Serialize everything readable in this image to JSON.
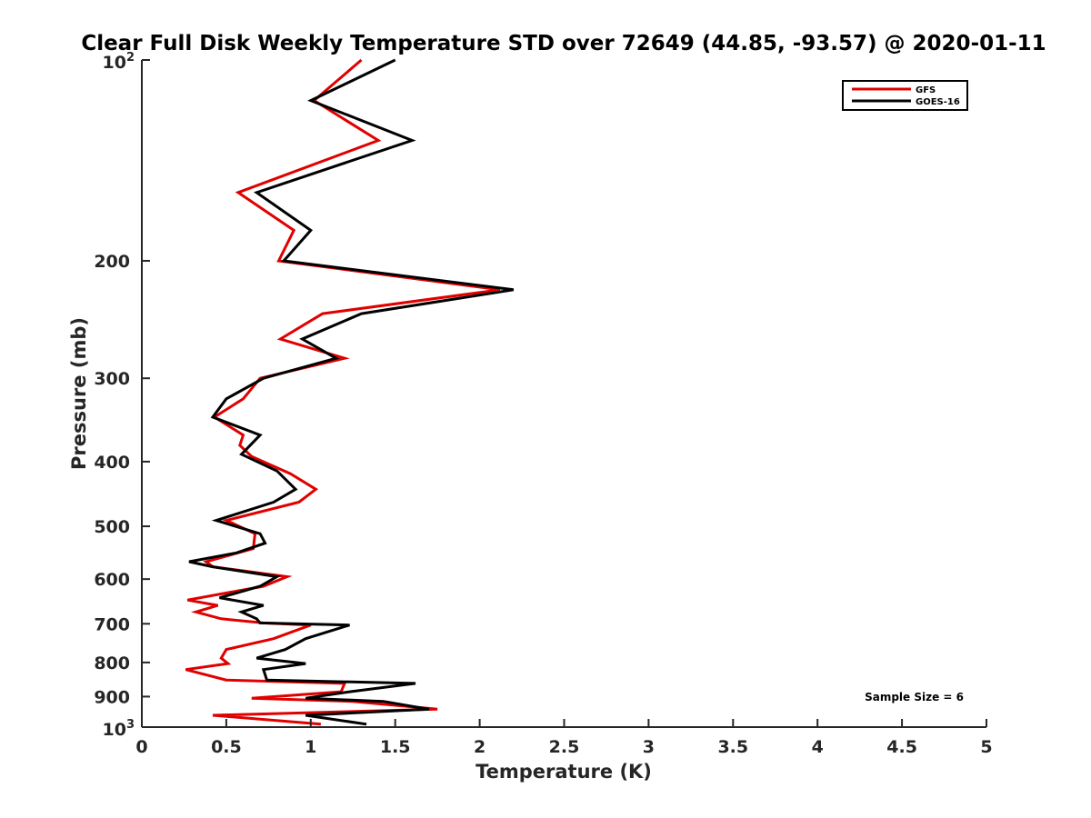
{
  "chart_data": {
    "type": "line",
    "title": "Clear Full Disk Weekly Temperature STD over 72649 (44.85, -93.57) @ 2020-01-11",
    "xlabel": "Temperature (K)",
    "ylabel": "Pressure (mb)",
    "xlim": [
      0,
      5
    ],
    "ylim": [
      100,
      1000
    ],
    "y_scale": "log",
    "y_reversed": true,
    "x_ticks": [
      "0",
      "0.5",
      "1",
      "1.5",
      "2",
      "2.5",
      "3",
      "3.5",
      "4",
      "4.5",
      "5"
    ],
    "y_ticks": [
      {
        "value": 100,
        "base": "10",
        "exp": "2",
        "label": ""
      },
      {
        "value": 200,
        "label": "200"
      },
      {
        "value": 300,
        "label": "300"
      },
      {
        "value": 400,
        "label": "400"
      },
      {
        "value": 500,
        "label": "500"
      },
      {
        "value": 600,
        "label": "600"
      },
      {
        "value": 700,
        "label": "700"
      },
      {
        "value": 800,
        "label": "800"
      },
      {
        "value": 900,
        "label": "900"
      },
      {
        "value": 1000,
        "base": "10",
        "exp": "3",
        "label": ""
      }
    ],
    "grid": false,
    "legend_position": "top-right",
    "annotation": "Sample Size = 6",
    "series": [
      {
        "name": "GFS",
        "color": "#e00000",
        "points": [
          [
            1.3,
            100
          ],
          [
            1.02,
            115
          ],
          [
            1.4,
            132
          ],
          [
            0.57,
            158
          ],
          [
            0.9,
            180
          ],
          [
            0.81,
            200
          ],
          [
            2.12,
            221
          ],
          [
            1.07,
            240
          ],
          [
            0.82,
            262
          ],
          [
            1.2,
            280
          ],
          [
            0.7,
            300
          ],
          [
            0.6,
            322
          ],
          [
            0.43,
            343
          ],
          [
            0.6,
            365
          ],
          [
            0.58,
            378
          ],
          [
            0.65,
            393
          ],
          [
            0.88,
            417
          ],
          [
            1.03,
            440
          ],
          [
            0.93,
            460
          ],
          [
            0.5,
            490
          ],
          [
            0.67,
            513
          ],
          [
            0.66,
            540
          ],
          [
            0.38,
            565
          ],
          [
            0.42,
            575
          ],
          [
            0.86,
            595
          ],
          [
            0.72,
            615
          ],
          [
            0.27,
            645
          ],
          [
            0.45,
            657
          ],
          [
            0.32,
            672
          ],
          [
            0.47,
            688
          ],
          [
            0.72,
            698
          ],
          [
            1.0,
            703
          ],
          [
            0.78,
            737
          ],
          [
            0.5,
            765
          ],
          [
            0.47,
            788
          ],
          [
            0.51,
            803
          ],
          [
            0.26,
            820
          ],
          [
            0.5,
            850
          ],
          [
            1.2,
            860
          ],
          [
            1.18,
            885
          ],
          [
            0.65,
            905
          ],
          [
            1.25,
            915
          ],
          [
            1.75,
            940
          ],
          [
            0.42,
            960
          ],
          [
            1.06,
            990
          ]
        ]
      },
      {
        "name": "GOES-16",
        "color": "#000000",
        "points": [
          [
            1.5,
            100
          ],
          [
            1.0,
            115
          ],
          [
            1.6,
            132
          ],
          [
            0.68,
            158
          ],
          [
            1.0,
            180
          ],
          [
            0.84,
            200
          ],
          [
            2.2,
            221
          ],
          [
            1.3,
            240
          ],
          [
            0.95,
            262
          ],
          [
            1.15,
            280
          ],
          [
            0.72,
            300
          ],
          [
            0.5,
            322
          ],
          [
            0.42,
            343
          ],
          [
            0.7,
            365
          ],
          [
            0.59,
            390
          ],
          [
            0.8,
            413
          ],
          [
            0.91,
            440
          ],
          [
            0.78,
            460
          ],
          [
            0.44,
            490
          ],
          [
            0.7,
            513
          ],
          [
            0.73,
            530
          ],
          [
            0.56,
            548
          ],
          [
            0.28,
            565
          ],
          [
            0.42,
            575
          ],
          [
            0.8,
            595
          ],
          [
            0.7,
            615
          ],
          [
            0.46,
            640
          ],
          [
            0.72,
            657
          ],
          [
            0.59,
            672
          ],
          [
            0.68,
            688
          ],
          [
            0.7,
            698
          ],
          [
            1.23,
            703
          ],
          [
            0.97,
            737
          ],
          [
            0.85,
            765
          ],
          [
            0.68,
            788
          ],
          [
            0.97,
            803
          ],
          [
            0.72,
            820
          ],
          [
            0.74,
            850
          ],
          [
            1.62,
            860
          ],
          [
            1.23,
            885
          ],
          [
            0.97,
            905
          ],
          [
            1.43,
            915
          ],
          [
            1.7,
            940
          ],
          [
            0.97,
            960
          ],
          [
            1.33,
            990
          ]
        ]
      }
    ]
  }
}
